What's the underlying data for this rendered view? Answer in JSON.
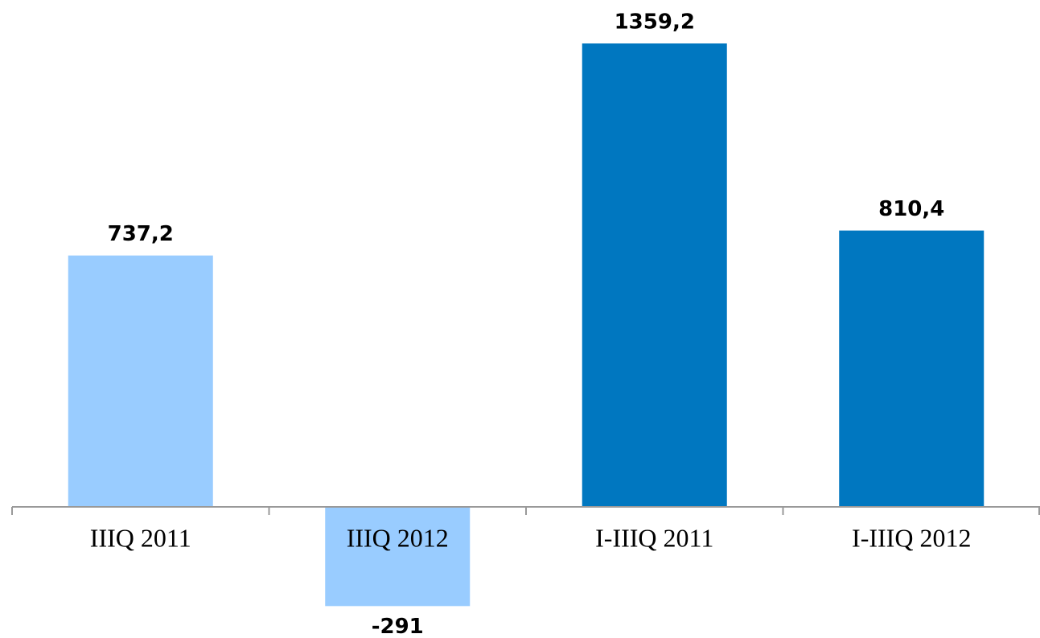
{
  "chart_data": {
    "type": "bar",
    "categories": [
      "IIIQ 2011",
      "IIIQ 2012",
      "I-IIIQ 2011",
      "I-IIIQ 2012"
    ],
    "values": [
      737.2,
      -291,
      1359.2,
      810.4
    ],
    "value_labels": [
      "737,2",
      "-291",
      "1359,2",
      "810,4"
    ],
    "colors": [
      "#99ccff",
      "#99ccff",
      "#0077c0",
      "#0077c0"
    ]
  }
}
